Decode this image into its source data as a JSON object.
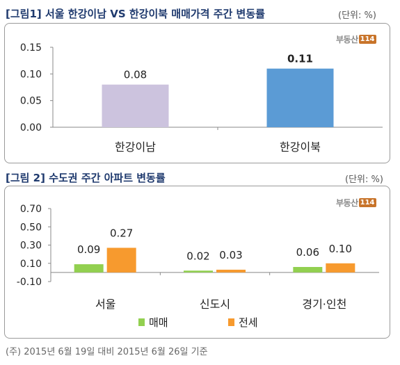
{
  "figure1": {
    "title": "[그림1] 서울 한강이남 VS 한강이북 매매가격 주간 변동률",
    "unit": "(단위: %)",
    "logo_text": "부동산",
    "logo_number": "114"
  },
  "figure2": {
    "title": "[그림 2] 수도권 주간 아파트 변동률",
    "unit": "(단위: %)",
    "logo_text": "부동산",
    "logo_number": "114"
  },
  "footnote": "(주) 2015년 6월 19일 대비 2015년 6월 26일 기준",
  "chart_data": [
    {
      "type": "bar",
      "categories": [
        "한강이남",
        "한강이북"
      ],
      "values": [
        0.08,
        0.11
      ],
      "value_labels": [
        "0.08",
        "0.11"
      ],
      "colors": [
        "#ccc3de",
        "#5b9bd5"
      ],
      "ylim": [
        0,
        0.15
      ],
      "yticks": [
        "0.00",
        "0.05",
        "0.10",
        "0.15"
      ],
      "grid": false
    },
    {
      "type": "bar",
      "categories": [
        "서울",
        "신도시",
        "경기·인천"
      ],
      "series": [
        {
          "name": "매매",
          "values": [
            0.09,
            0.02,
            0.06
          ],
          "labels": [
            "0.09",
            "0.02",
            "0.06"
          ],
          "color": "#92d050"
        },
        {
          "name": "전세",
          "values": [
            0.27,
            0.03,
            0.1
          ],
          "labels": [
            "0.27",
            "0.03",
            "0.10"
          ],
          "color": "#f79a2e"
        }
      ],
      "ylim": [
        -0.1,
        0.7
      ],
      "yticks": [
        "-0.10",
        "0.10",
        "0.30",
        "0.50",
        "0.70"
      ],
      "legend": "bottom",
      "grid": false
    }
  ]
}
